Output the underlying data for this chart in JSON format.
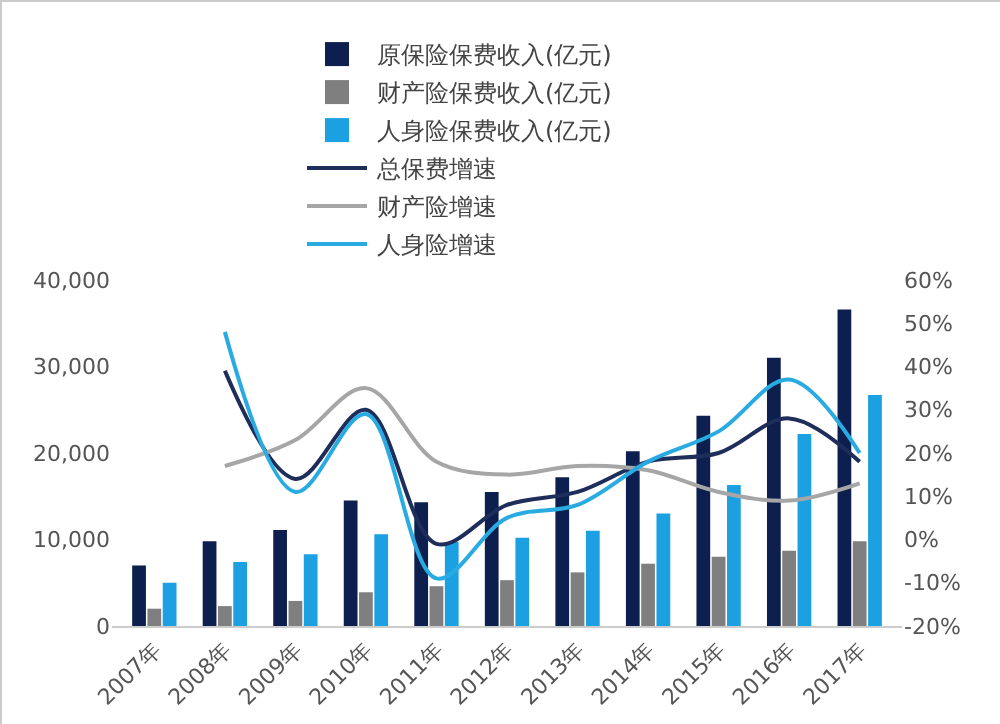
{
  "chart_data": {
    "type": "bar",
    "categories": [
      "2007年",
      "2008年",
      "2009年",
      "2010年",
      "2011年",
      "2012年",
      "2013年",
      "2014年",
      "2015年",
      "2016年",
      "2017年"
    ],
    "series": [
      {
        "name": "原保险保费收入(亿元)",
        "color": "#0d1f4f",
        "values": [
          7000,
          9800,
          11100,
          14500,
          14300,
          15500,
          17200,
          20200,
          24300,
          31000,
          36600
        ]
      },
      {
        "name": "财产险保费收入(亿元)",
        "color": "#7f7f7f",
        "values": [
          2000,
          2300,
          2900,
          3900,
          4600,
          5300,
          6200,
          7200,
          8000,
          8700,
          9800
        ]
      },
      {
        "name": "人身险保费收入(亿元)",
        "color": "#1ba1e2",
        "values": [
          5000,
          7400,
          8300,
          10600,
          9700,
          10200,
          11000,
          13000,
          16300,
          22200,
          26700
        ]
      },
      {
        "name": "总保费增速",
        "type": "line",
        "axis": "y2",
        "color": "#1f2d5a",
        "values": [
          null,
          39,
          14,
          30,
          -1,
          8,
          11,
          18,
          20,
          28,
          18
        ]
      },
      {
        "name": "财产险增速",
        "type": "line",
        "axis": "y2",
        "color": "#a6a6a6",
        "values": [
          null,
          17,
          23,
          35,
          18,
          15,
          17,
          16,
          11,
          9,
          13
        ]
      },
      {
        "name": "人身险增速",
        "type": "line",
        "axis": "y2",
        "color": "#29abe2",
        "values": [
          null,
          48,
          11,
          29,
          -9,
          5,
          8,
          18,
          25,
          37,
          20
        ]
      }
    ],
    "ylim": [
      0,
      40000
    ],
    "yticks": [
      {
        "value": 0,
        "label": "0"
      },
      {
        "value": 10000,
        "label": "10,000"
      },
      {
        "value": 20000,
        "label": "20,000"
      },
      {
        "value": 30000,
        "label": "30,000"
      },
      {
        "value": 40000,
        "label": "40,000"
      }
    ],
    "y2lim": [
      -20,
      60
    ],
    "y2ticks": [
      {
        "value": -20,
        "label": "-20%"
      },
      {
        "value": -10,
        "label": "-10%"
      },
      {
        "value": 0,
        "label": "0%"
      },
      {
        "value": 10,
        "label": "10%"
      },
      {
        "value": 20,
        "label": "20%"
      },
      {
        "value": 30,
        "label": "30%"
      },
      {
        "value": 40,
        "label": "40%"
      },
      {
        "value": 50,
        "label": "50%"
      },
      {
        "value": 60,
        "label": "60%"
      }
    ],
    "grid": false,
    "legend": "top"
  }
}
